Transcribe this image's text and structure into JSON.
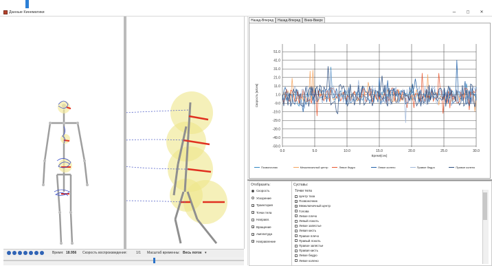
{
  "window": {
    "title": "Данные Кинематики",
    "minimize": "–",
    "maximize": "◻",
    "close": "✕"
  },
  "tabs": [
    {
      "label": "Назад-Вперед",
      "active": true
    },
    {
      "label": "Назад-Вперед",
      "active": false
    },
    {
      "label": "Вниз-Вверх",
      "active": false
    }
  ],
  "controls": {
    "time_label": "Время:",
    "time_value": "18.956",
    "speed_label": "Скорость воспроизведения:",
    "speed_value": "1/1",
    "scale_label": "Масштаб временны:",
    "scale_value": "Весь поток",
    "buttons": [
      "skip-start-icon",
      "prev-icon",
      "rewind-icon",
      "play-icon",
      "forward-icon",
      "next-icon",
      "skip-end-icon"
    ]
  },
  "display": {
    "header": "Отобразить:",
    "items": [
      {
        "label": "Скорость",
        "type": "radio",
        "checked": true
      },
      {
        "label": "Ускорение",
        "type": "radio",
        "checked": false
      },
      {
        "label": "Траектория",
        "type": "check",
        "checked": true
      },
      {
        "label": "Точки тела",
        "type": "check",
        "checked": true
      },
      {
        "label": "Направл.",
        "type": "check",
        "checked": false
      },
      {
        "label": "Вращение",
        "type": "check",
        "checked": true
      },
      {
        "label": "Амплитуда",
        "type": "check",
        "checked": true
      },
      {
        "label": "Направление",
        "type": "check",
        "checked": true
      }
    ]
  },
  "joints": {
    "header": "Суставы:",
    "subheader": "Точки тела",
    "items": [
      {
        "label": "Центр таза",
        "checked": false
      },
      {
        "label": "Позвоночник",
        "checked": true
      },
      {
        "label": "Межключичный центр",
        "checked": true
      },
      {
        "label": "Голова",
        "checked": false
      },
      {
        "label": "Левое плечо",
        "checked": false
      },
      {
        "label": "Левый локоть",
        "checked": false
      },
      {
        "label": "Левое запястье",
        "checked": false
      },
      {
        "label": "Левая кисть",
        "checked": false
      },
      {
        "label": "Правое плечо",
        "checked": false
      },
      {
        "label": "Правый локоть",
        "checked": false
      },
      {
        "label": "Правое запястье",
        "checked": false
      },
      {
        "label": "Правая кисть",
        "checked": false
      },
      {
        "label": "Левое бедро",
        "checked": false
      },
      {
        "label": "Левое колено",
        "checked": false
      }
    ]
  },
  "chart_data": {
    "type": "line",
    "xlabel": "Время[сек]",
    "ylabel": "Скорость [м/сек]",
    "xlim": [
      0,
      30
    ],
    "ylim": [
      -60,
      60
    ],
    "xticks": [
      "0.0",
      "5.0",
      "10.0",
      "15.0",
      "20.0",
      "25.0",
      "30.0"
    ],
    "yticks": [
      "51.0",
      "41.0",
      "31.0",
      "21.0",
      "11.0",
      "1.0",
      "-9.0",
      "-19.0",
      "-29.0",
      "-39.0",
      "-49.0",
      "-59.0"
    ],
    "ytick_values": [
      51,
      41,
      31,
      21,
      11,
      1,
      -9,
      -19,
      -29,
      -39,
      -49,
      -59
    ],
    "series": [
      {
        "name": "Позвоночник",
        "color": "#2e86c1"
      },
      {
        "name": "Межключичный центр",
        "color": "#f5a35c"
      },
      {
        "name": "Левое бедро",
        "color": "#e8542b"
      },
      {
        "name": "Левое колено",
        "color": "#1f5fa8"
      },
      {
        "name": "Правое бедро",
        "color": "#9fb7d9"
      },
      {
        "name": "Правое колено",
        "color": "#2a4d80"
      }
    ]
  }
}
